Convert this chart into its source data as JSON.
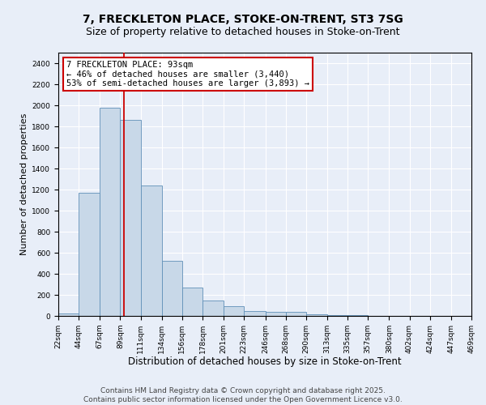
{
  "title_line1": "7, FRECKLETON PLACE, STOKE-ON-TRENT, ST3 7SG",
  "title_line2": "Size of property relative to detached houses in Stoke-on-Trent",
  "xlabel": "Distribution of detached houses by size in Stoke-on-Trent",
  "ylabel": "Number of detached properties",
  "bar_color": "#c8d8e8",
  "bar_edge_color": "#6090b8",
  "background_color": "#e8eef8",
  "grid_color": "#ffffff",
  "annotation_box_color": "#cc0000",
  "vline_color": "#cc0000",
  "bins": [
    22,
    44,
    67,
    89,
    111,
    134,
    156,
    178,
    201,
    223,
    246,
    268,
    290,
    313,
    335,
    357,
    380,
    402,
    424,
    447,
    469
  ],
  "values": [
    25,
    1170,
    1980,
    1860,
    1240,
    520,
    270,
    150,
    90,
    45,
    40,
    38,
    18,
    10,
    5,
    3,
    2,
    2,
    1,
    2
  ],
  "vline_x": 93,
  "annotation_text": "7 FRECKLETON PLACE: 93sqm\n← 46% of detached houses are smaller (3,440)\n53% of semi-detached houses are larger (3,893) →",
  "ylim": [
    0,
    2500
  ],
  "yticks": [
    0,
    200,
    400,
    600,
    800,
    1000,
    1200,
    1400,
    1600,
    1800,
    2000,
    2200,
    2400
  ],
  "footer_line1": "Contains HM Land Registry data © Crown copyright and database right 2025.",
  "footer_line2": "Contains public sector information licensed under the Open Government Licence v3.0.",
  "title_fontsize": 10,
  "subtitle_fontsize": 9,
  "tick_fontsize": 6.5,
  "xlabel_fontsize": 8.5,
  "ylabel_fontsize": 8,
  "annotation_fontsize": 7.5,
  "footer_fontsize": 6.5
}
